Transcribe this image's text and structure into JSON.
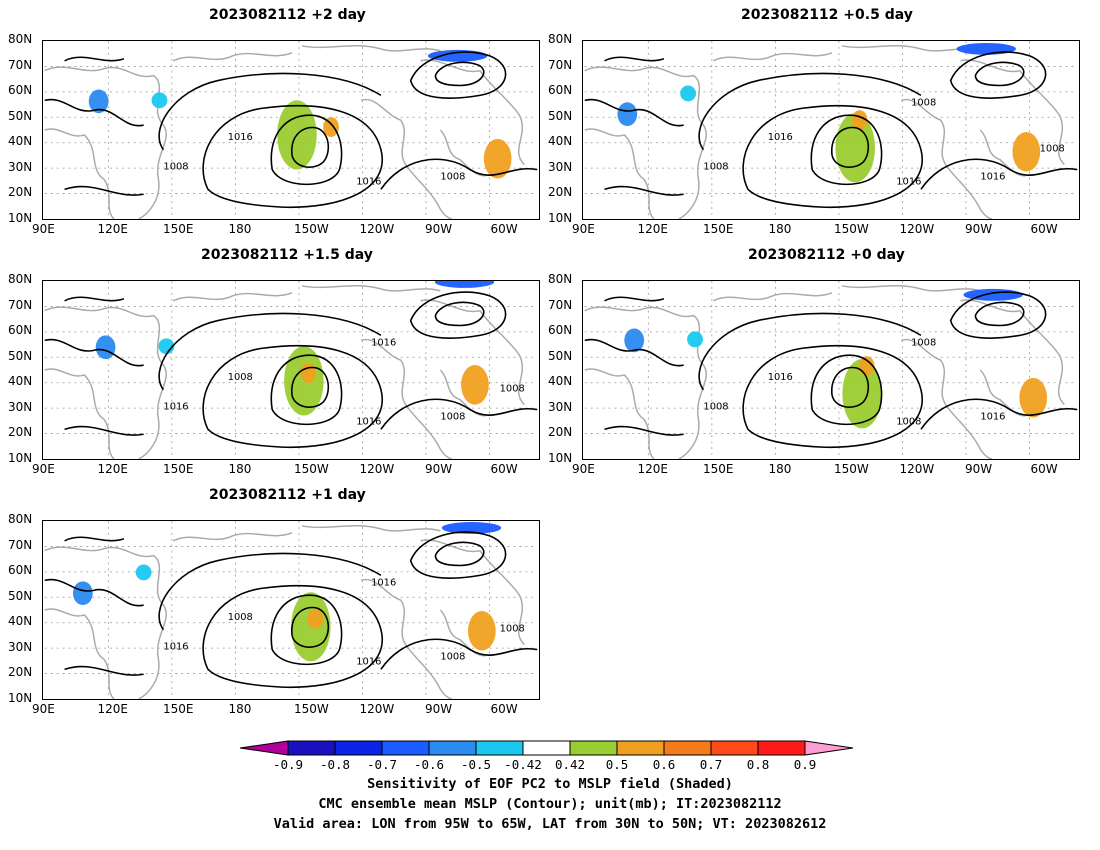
{
  "panels": [
    {
      "id": "p1",
      "title": "2023082112 +2 day",
      "labels": [
        "1016",
        "1008",
        "1016",
        "1008"
      ]
    },
    {
      "id": "p2",
      "title": "2023082112 +0.5 day",
      "labels": [
        "1016",
        "1008",
        "1016",
        "1016",
        "1008",
        "1008"
      ]
    },
    {
      "id": "p3",
      "title": "2023082112 +1.5 day",
      "labels": [
        "1008",
        "1016",
        "1016",
        "1008",
        "1016",
        "1008"
      ]
    },
    {
      "id": "p4",
      "title": "2023082112 +0 day",
      "labels": [
        "1016",
        "1008",
        "1008",
        "1016",
        "1008"
      ]
    },
    {
      "id": "p5",
      "title": "2023082112 +1 day",
      "labels": [
        "1008",
        "1016",
        "1016",
        "1008",
        "1016",
        "1008"
      ]
    }
  ],
  "lat_ticks": [
    "80N",
    "70N",
    "60N",
    "50N",
    "40N",
    "30N",
    "20N",
    "10N"
  ],
  "lon_ticks": [
    "90E",
    "120E",
    "150E",
    "180",
    "150W",
    "120W",
    "90W",
    "60W"
  ],
  "colorbar": {
    "labels": [
      "-0.9",
      "-0.8",
      "-0.7",
      "-0.6",
      "-0.5",
      "-0.42",
      "0.42",
      "0.5",
      "0.6",
      "0.7",
      "0.8",
      "0.9"
    ],
    "colors": [
      "#b0009b",
      "#1a10c0",
      "#0a24e6",
      "#1a5cff",
      "#2a8af0",
      "#1ac8f0",
      "#ffffff",
      "#9acd32",
      "#f0a020",
      "#f57a1a",
      "#ff4a1a",
      "#ff1a1a",
      "#ff9ed2"
    ]
  },
  "caption": [
    "Sensitivity of EOF PC2 to MSLP field (Shaded)",
    "CMC ensemble mean MSLP (Contour); unit(mb); IT:2023082112",
    "Valid area: LON from 95W to 65W, LAT from 30N to 50N; VT: 2023082612"
  ]
}
